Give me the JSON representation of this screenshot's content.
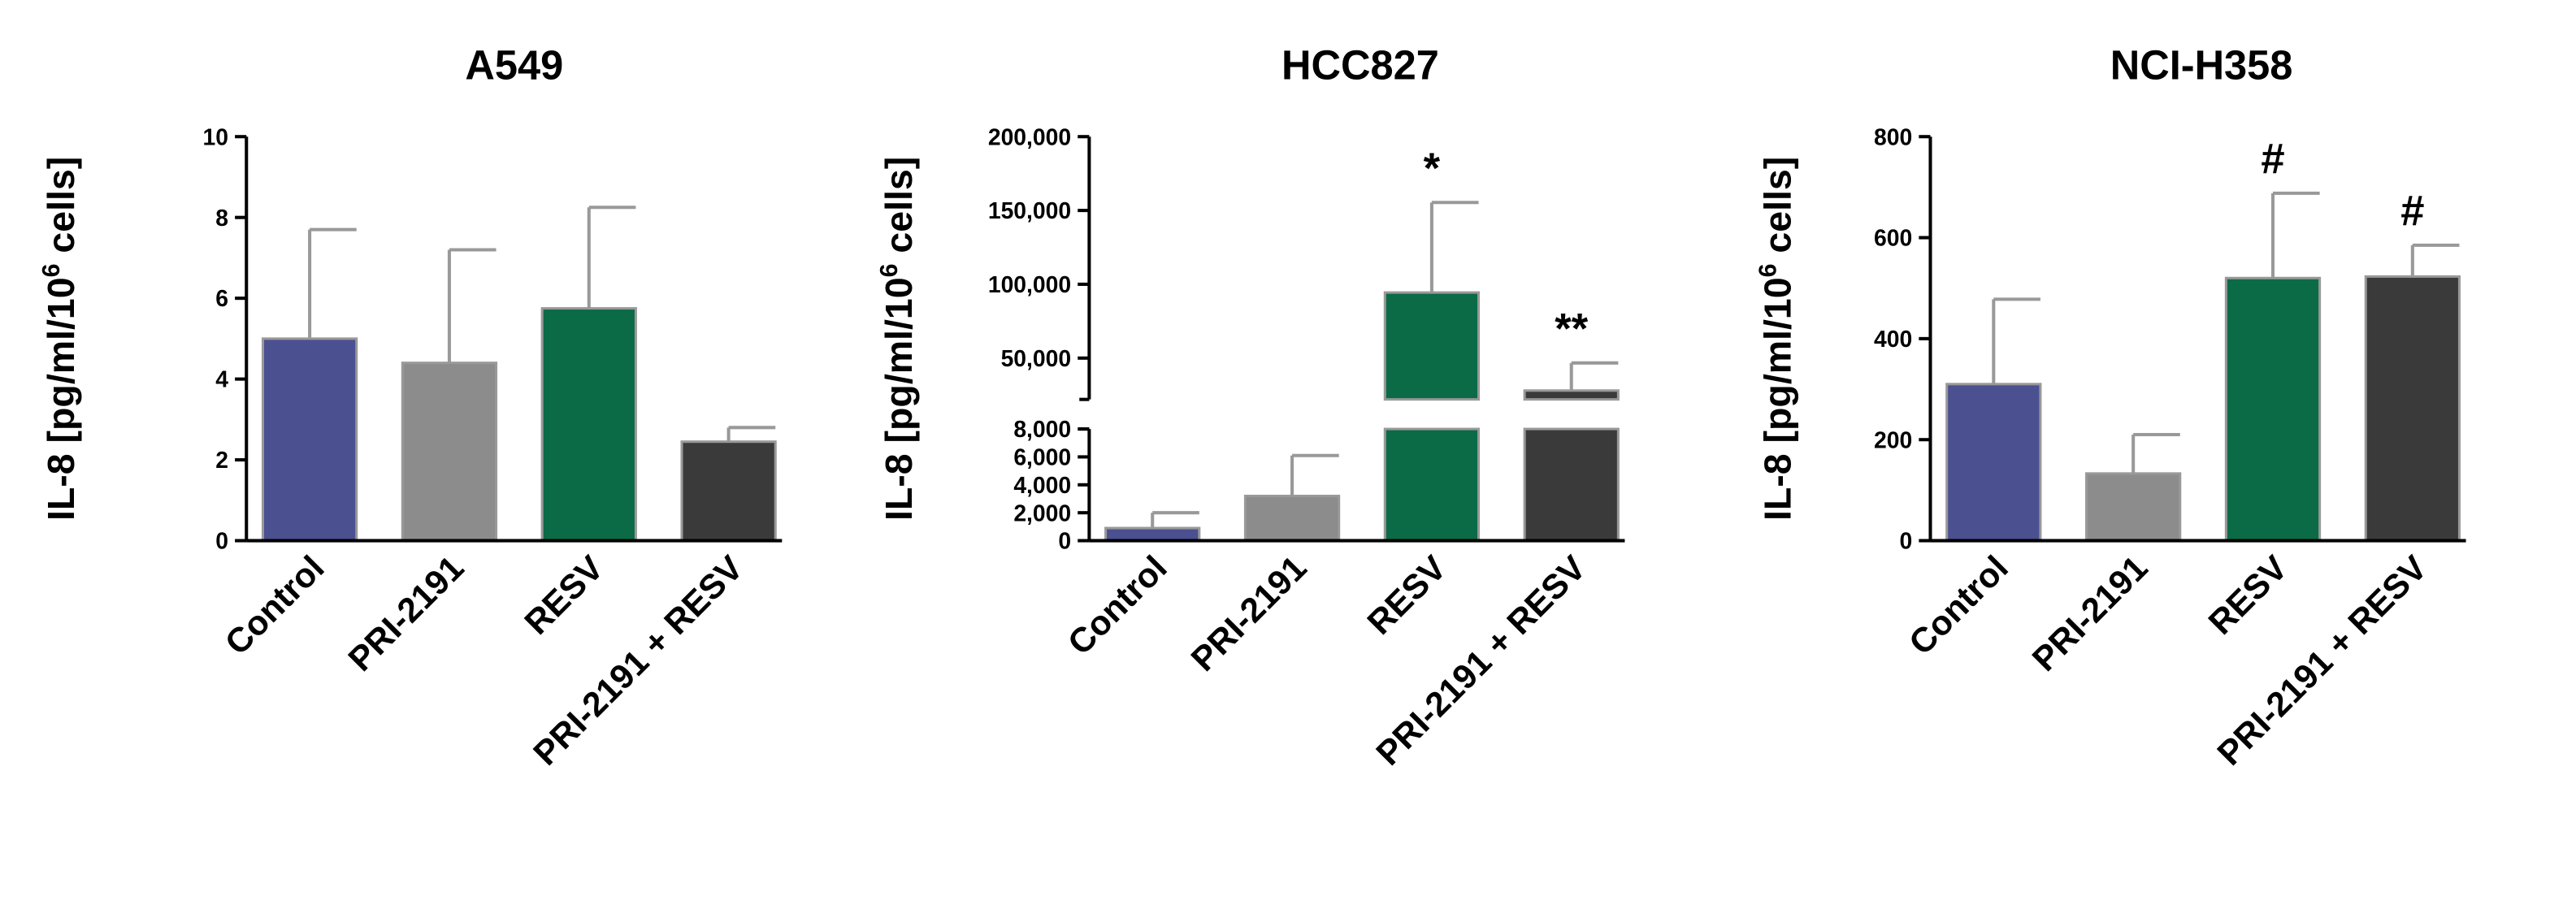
{
  "chart_data": [
    {
      "type": "bar",
      "title": "A549",
      "ylabel": "IL-8 [pg/ml/10",
      "ylabel_sup": "6",
      "ylabel_end": " cells]",
      "categories": [
        "Control",
        "PRI-2191",
        "RESV",
        "PRI-2191 + RESV"
      ],
      "values": [
        5.0,
        4.4,
        5.75,
        2.45
      ],
      "errors": [
        2.7,
        2.8,
        2.5,
        0.35
      ],
      "colors": [
        "#4b5091",
        "#8c8c8c",
        "#0a6b46",
        "#3a3a3a"
      ],
      "annotations": [
        null,
        null,
        null,
        null
      ],
      "ylim": [
        0,
        10
      ],
      "yticks": [
        0,
        2,
        4,
        6,
        8,
        10
      ]
    },
    {
      "type": "bar",
      "title": "HCC827",
      "ylabel": "IL-8 [pg/ml/10",
      "ylabel_sup": "6",
      "ylabel_end": " cells]",
      "categories": [
        "Control",
        "PRI-2191",
        "RESV",
        "PRI-2191 + RESV"
      ],
      "values": [
        900,
        3200,
        94400,
        28000
      ],
      "errors": [
        1100,
        2900,
        61000,
        18700
      ],
      "colors": [
        "#4b5091",
        "#8c8c8c",
        "#0a6b46",
        "#3a3a3a"
      ],
      "annotations": [
        null,
        null,
        "*",
        "**"
      ],
      "segments": [
        {
          "ylim": [
            0,
            8000
          ],
          "yticks": [
            0,
            {
              "value": 2000,
              "label": "2,000"
            },
            {
              "value": 4000,
              "label": "4,000"
            },
            {
              "value": 6000,
              "label": "6,000"
            },
            {
              "value": 8000,
              "label": "8,000"
            }
          ]
        },
        {
          "ylim": [
            22000,
            200000
          ],
          "yticks": [
            {
              "value": 50000,
              "label": "50,000"
            },
            {
              "value": 100000,
              "label": "100,000"
            },
            {
              "value": 150000,
              "label": "150,000"
            },
            {
              "value": 200000,
              "label": "200,000"
            }
          ]
        }
      ]
    },
    {
      "type": "bar",
      "title": "NCI-H358",
      "ylabel": "IL-8 [pg/ml/10",
      "ylabel_sup": "6",
      "ylabel_end": " cells]",
      "categories": [
        "Control",
        "PRI-2191",
        "RESV",
        "PRI-2191 + RESV"
      ],
      "values": [
        310,
        133,
        520,
        523
      ],
      "errors": [
        168,
        77,
        168,
        62
      ],
      "colors": [
        "#4b5091",
        "#8c8c8c",
        "#0a6b46",
        "#3a3a3a"
      ],
      "annotations": [
        null,
        null,
        "#",
        "#"
      ],
      "ylim": [
        0,
        800
      ],
      "yticks": [
        0,
        200,
        400,
        600,
        800
      ]
    }
  ]
}
